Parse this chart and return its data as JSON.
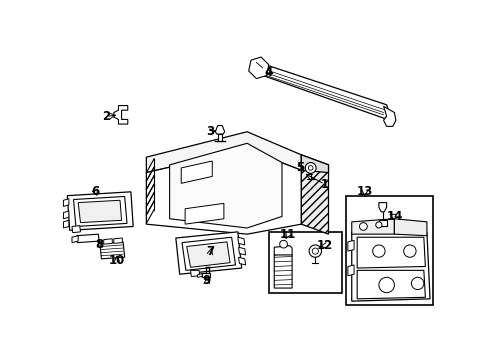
{
  "background_color": "#ffffff",
  "line_color": "#000000",
  "figsize": [
    4.89,
    3.6
  ],
  "dpi": 100,
  "label_positions": {
    "1": [
      340,
      183,
      305,
      168
    ],
    "2": [
      60,
      95,
      75,
      95
    ],
    "3": [
      195,
      118,
      205,
      115
    ],
    "4": [
      268,
      40,
      278,
      42
    ],
    "5": [
      310,
      162,
      322,
      162
    ],
    "6": [
      47,
      193,
      47,
      200
    ],
    "7": [
      195,
      270,
      195,
      263
    ],
    "8": [
      52,
      263,
      52,
      258
    ],
    "9": [
      190,
      305,
      190,
      298
    ],
    "10": [
      75,
      280,
      75,
      273
    ],
    "11": [
      295,
      248,
      295,
      253
    ],
    "12": [
      338,
      265,
      328,
      265
    ],
    "13": [
      392,
      192,
      392,
      198
    ],
    "14": [
      428,
      228,
      418,
      228
    ]
  }
}
